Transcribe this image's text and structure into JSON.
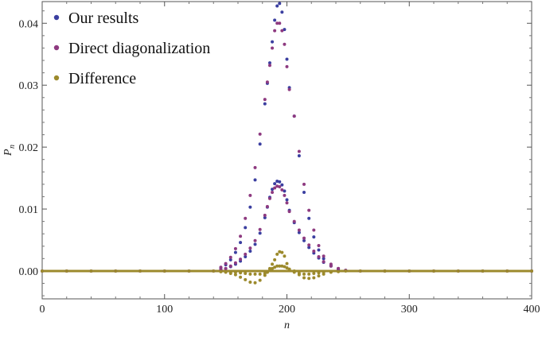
{
  "chart_data": {
    "type": "scatter",
    "xlabel": "n",
    "ylabel": "P",
    "ylabel_sub": "n",
    "xlim": [
      0,
      400
    ],
    "ylim": [
      -0.0045,
      0.0435
    ],
    "x_ticks": [
      0,
      100,
      200,
      300,
      400
    ],
    "x_tick_labels": [
      "0",
      "100",
      "200",
      "300",
      "400"
    ],
    "y_ticks": [
      0.0,
      0.01,
      0.02,
      0.03,
      0.04
    ],
    "y_tick_labels": [
      "0.00",
      "0.01",
      "0.02",
      "0.03",
      "0.04"
    ],
    "grid": false,
    "legend_position": "top-left",
    "series": [
      {
        "name": "Our results",
        "color": "#3b3fa0",
        "points": [
          [
            0,
            0
          ],
          [
            20,
            0
          ],
          [
            40,
            0
          ],
          [
            60,
            0
          ],
          [
            80,
            0
          ],
          [
            100,
            0
          ],
          [
            120,
            0
          ],
          [
            140,
            0
          ],
          [
            146,
            0.0002
          ],
          [
            150,
            0.0004
          ],
          [
            154,
            0.0007
          ],
          [
            158,
            0.0011
          ],
          [
            162,
            0.0016
          ],
          [
            166,
            0.0023
          ],
          [
            170,
            0.0032
          ],
          [
            174,
            0.0043
          ],
          [
            178,
            0.0061
          ],
          [
            182,
            0.0086
          ],
          [
            184,
            0.0103
          ],
          [
            186,
            0.0119
          ],
          [
            188,
            0.0132
          ],
          [
            190,
            0.0141
          ],
          [
            192,
            0.0145
          ],
          [
            194,
            0.0144
          ],
          [
            196,
            0.0139
          ],
          [
            198,
            0.0129
          ],
          [
            200,
            0.0115
          ],
          [
            202,
            0.0098
          ],
          [
            206,
            0.0078
          ],
          [
            210,
            0.0062
          ],
          [
            214,
            0.0049
          ],
          [
            218,
            0.0038
          ],
          [
            222,
            0.0029
          ],
          [
            226,
            0.0021
          ],
          [
            230,
            0.0014
          ],
          [
            236,
            0.0008
          ],
          [
            242,
            0.0004
          ],
          [
            248,
            0.0001
          ],
          [
            260,
            0
          ],
          [
            280,
            0
          ],
          [
            300,
            0
          ],
          [
            320,
            0
          ],
          [
            340,
            0
          ],
          [
            360,
            0
          ],
          [
            380,
            0
          ],
          [
            400,
            0
          ],
          [
            146,
            0.0005
          ],
          [
            150,
            0.001
          ],
          [
            154,
            0.0018
          ],
          [
            158,
            0.003
          ],
          [
            162,
            0.0046
          ],
          [
            166,
            0.007
          ],
          [
            170,
            0.0103
          ],
          [
            174,
            0.0147
          ],
          [
            178,
            0.0205
          ],
          [
            182,
            0.027
          ],
          [
            184,
            0.0303
          ],
          [
            186,
            0.0336
          ],
          [
            188,
            0.037
          ],
          [
            190,
            0.0405
          ],
          [
            192,
            0.0428
          ],
          [
            194,
            0.0432
          ],
          [
            196,
            0.0418
          ],
          [
            198,
            0.039
          ],
          [
            200,
            0.0342
          ],
          [
            202,
            0.0296
          ],
          [
            206,
            0.025
          ],
          [
            210,
            0.0186
          ],
          [
            214,
            0.0127
          ],
          [
            218,
            0.0085
          ],
          [
            222,
            0.0055
          ],
          [
            226,
            0.0034
          ],
          [
            230,
            0.002
          ],
          [
            236,
            0.0009
          ],
          [
            242,
            0.0003
          ]
        ]
      },
      {
        "name": "Direct diagonalization",
        "color": "#8e3a80",
        "points": [
          [
            0,
            0
          ],
          [
            20,
            0
          ],
          [
            40,
            0
          ],
          [
            60,
            0
          ],
          [
            80,
            0
          ],
          [
            100,
            0
          ],
          [
            120,
            0
          ],
          [
            140,
            0
          ],
          [
            146,
            0.0002
          ],
          [
            150,
            0.0004
          ],
          [
            154,
            0.0008
          ],
          [
            158,
            0.0013
          ],
          [
            162,
            0.0019
          ],
          [
            166,
            0.0027
          ],
          [
            170,
            0.0037
          ],
          [
            174,
            0.0049
          ],
          [
            178,
            0.0067
          ],
          [
            182,
            0.009
          ],
          [
            184,
            0.0104
          ],
          [
            186,
            0.0117
          ],
          [
            188,
            0.0127
          ],
          [
            190,
            0.0134
          ],
          [
            192,
            0.0137
          ],
          [
            194,
            0.0136
          ],
          [
            196,
            0.0131
          ],
          [
            198,
            0.0122
          ],
          [
            200,
            0.011
          ],
          [
            202,
            0.0096
          ],
          [
            206,
            0.008
          ],
          [
            210,
            0.0066
          ],
          [
            214,
            0.0053
          ],
          [
            218,
            0.0042
          ],
          [
            222,
            0.0032
          ],
          [
            226,
            0.0023
          ],
          [
            230,
            0.0015
          ],
          [
            236,
            0.0008
          ],
          [
            242,
            0.0004
          ],
          [
            248,
            0.0001
          ],
          [
            260,
            0
          ],
          [
            280,
            0
          ],
          [
            300,
            0
          ],
          [
            320,
            0
          ],
          [
            340,
            0
          ],
          [
            360,
            0
          ],
          [
            380,
            0
          ],
          [
            400,
            0
          ],
          [
            146,
            0.0006
          ],
          [
            150,
            0.0012
          ],
          [
            154,
            0.0022
          ],
          [
            158,
            0.0036
          ],
          [
            162,
            0.0056
          ],
          [
            166,
            0.0085
          ],
          [
            170,
            0.0122
          ],
          [
            174,
            0.0167
          ],
          [
            178,
            0.0221
          ],
          [
            182,
            0.0277
          ],
          [
            184,
            0.0305
          ],
          [
            186,
            0.0332
          ],
          [
            188,
            0.036
          ],
          [
            190,
            0.0388
          ],
          [
            192,
            0.04
          ],
          [
            194,
            0.04
          ],
          [
            196,
            0.0388
          ],
          [
            198,
            0.0366
          ],
          [
            200,
            0.033
          ],
          [
            202,
            0.0293
          ],
          [
            206,
            0.025
          ],
          [
            210,
            0.0193
          ],
          [
            214,
            0.014
          ],
          [
            218,
            0.0098
          ],
          [
            222,
            0.0066
          ],
          [
            226,
            0.0041
          ],
          [
            230,
            0.0024
          ],
          [
            236,
            0.0011
          ],
          [
            242,
            0.0004
          ]
        ]
      },
      {
        "name": "Difference",
        "color": "#9c8a2c",
        "points": [
          [
            0,
            0
          ],
          [
            20,
            0
          ],
          [
            40,
            0
          ],
          [
            60,
            0
          ],
          [
            80,
            0
          ],
          [
            100,
            0
          ],
          [
            120,
            0
          ],
          [
            140,
            0
          ],
          [
            146,
            -0.0001
          ],
          [
            150,
            -0.0001
          ],
          [
            154,
            -0.0002
          ],
          [
            158,
            -0.0002
          ],
          [
            162,
            -0.0003
          ],
          [
            166,
            -0.0004
          ],
          [
            170,
            -0.0005
          ],
          [
            174,
            -0.0005
          ],
          [
            178,
            -0.0005
          ],
          [
            182,
            -0.0004
          ],
          [
            184,
            -0.0002
          ],
          [
            186,
            0.0001
          ],
          [
            188,
            0.0004
          ],
          [
            190,
            0.0006
          ],
          [
            192,
            0.0008
          ],
          [
            194,
            0.0008
          ],
          [
            196,
            0.0008
          ],
          [
            198,
            0.0007
          ],
          [
            200,
            0.0005
          ],
          [
            202,
            0.0002
          ],
          [
            206,
            -0.0002
          ],
          [
            210,
            -0.0004
          ],
          [
            214,
            -0.0005
          ],
          [
            218,
            -0.0005
          ],
          [
            222,
            -0.0004
          ],
          [
            226,
            -0.0003
          ],
          [
            230,
            -0.0002
          ],
          [
            236,
            -0.0001
          ],
          [
            248,
            0
          ],
          [
            260,
            0
          ],
          [
            280,
            0
          ],
          [
            300,
            0
          ],
          [
            320,
            0
          ],
          [
            340,
            0
          ],
          [
            360,
            0
          ],
          [
            380,
            0
          ],
          [
            400,
            0
          ],
          [
            146,
            -0.0001
          ],
          [
            150,
            -0.0002
          ],
          [
            154,
            -0.0004
          ],
          [
            158,
            -0.0006
          ],
          [
            162,
            -0.001
          ],
          [
            166,
            -0.0014
          ],
          [
            170,
            -0.0018
          ],
          [
            174,
            -0.0019
          ],
          [
            178,
            -0.0015
          ],
          [
            182,
            -0.0007
          ],
          [
            184,
            -0.0002
          ],
          [
            186,
            0.0004
          ],
          [
            188,
            0.0011
          ],
          [
            190,
            0.0018
          ],
          [
            192,
            0.0027
          ],
          [
            194,
            0.0031
          ],
          [
            196,
            0.003
          ],
          [
            198,
            0.0024
          ],
          [
            200,
            0.0012
          ],
          [
            202,
            0.0003
          ],
          [
            206,
            0.0
          ],
          [
            210,
            -0.0006
          ],
          [
            214,
            -0.0011
          ],
          [
            218,
            -0.0012
          ],
          [
            222,
            -0.0011
          ],
          [
            226,
            -0.0008
          ],
          [
            230,
            -0.0005
          ],
          [
            236,
            -0.0002
          ],
          [
            242,
            -0.0001
          ]
        ]
      }
    ]
  }
}
